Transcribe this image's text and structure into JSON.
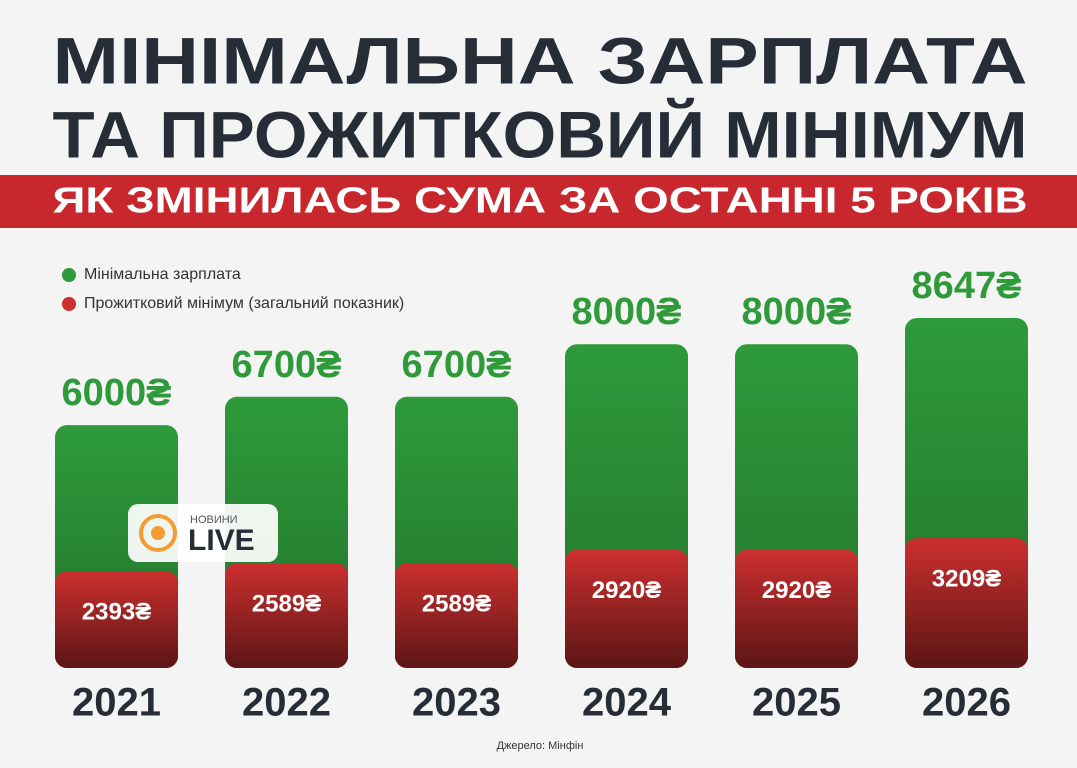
{
  "chart_data": {
    "type": "bar",
    "title": [
      "МІНІМАЛЬНА ЗАРПЛАТА",
      "ТА ПРОЖИТКОВИЙ МІНІМУМ"
    ],
    "subtitle": "ЯК ЗМІНИЛАСЬ СУМА ЗА ОСТАННІ 5 РОКІВ",
    "categories": [
      "2021",
      "2022",
      "2023",
      "2024",
      "2025",
      "2026"
    ],
    "series": [
      {
        "name": "Мінімальна зарплата",
        "color": "#2e9a3a",
        "values": [
          6000,
          6700,
          6700,
          8000,
          8000,
          8647
        ],
        "value_labels": [
          "6000₴",
          "6700₴",
          "6700₴",
          "8000₴",
          "8000₴",
          "8647₴"
        ]
      },
      {
        "name": "Прожитковий мінімум (загальний показник)",
        "color": "#cc2f2f",
        "values": [
          2393,
          2589,
          2589,
          2920,
          2920,
          3209
        ],
        "value_labels": [
          "2393₴",
          "2589₴",
          "2589₴",
          "2920₴",
          "2920₴",
          "3209₴"
        ]
      }
    ],
    "source": "Джерело: Мінфін",
    "logo": {
      "top": "НОВИНИ",
      "bottom": "LIVE"
    }
  }
}
